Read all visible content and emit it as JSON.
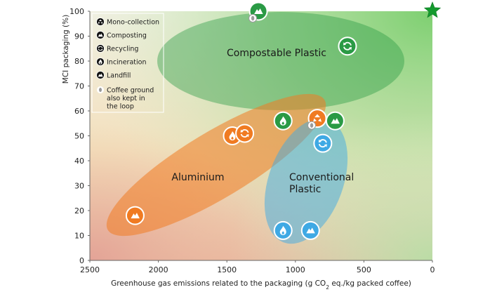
{
  "colors": {
    "compostable": "#2a9a45",
    "aluminium": "#f07b22",
    "conventional": "#3fa9e4",
    "coffee_ground": "#9a9a9a",
    "legend_icon": "#111111",
    "target_star": "#149a2e"
  },
  "chart_data": {
    "type": "scatter",
    "title": "",
    "xlabel": "Greenhouse gas emissions related to the packaging (g CO2 eq./kg packed coffee)",
    "xlabel_parts": {
      "before": "Greenhouse gas emissions related to the packaging (g CO",
      "sub": "2",
      "after": " eq./kg packed coffee)"
    },
    "ylabel": "MCI packaging (%)",
    "xlim": [
      2500,
      0
    ],
    "ylim": [
      0,
      100
    ],
    "xticks": [
      2500,
      2000,
      1500,
      1000,
      500,
      0
    ],
    "yticks": [
      0,
      10,
      20,
      30,
      40,
      50,
      60,
      70,
      80,
      90,
      100
    ],
    "grid": false,
    "legend_position": "top-left",
    "legend": [
      {
        "icon": "mono-collection",
        "label": "Mono-collection"
      },
      {
        "icon": "composting",
        "label": "Composting"
      },
      {
        "icon": "recycling",
        "label": "Recycling"
      },
      {
        "icon": "incineration",
        "label": "Incineration"
      },
      {
        "icon": "landfill",
        "label": "Landfill"
      },
      {
        "icon": "coffee-ground",
        "label": "Coffee ground also kept in the loop",
        "lines": [
          "Coffee ground",
          "also kept in",
          "the loop"
        ]
      }
    ],
    "clusters": [
      {
        "name": "Compostable Plastic",
        "lines": [
          "Compostable Plastic"
        ],
        "color": "compostable"
      },
      {
        "name": "Aluminium",
        "lines": [
          "Aluminium"
        ],
        "color": "aluminium"
      },
      {
        "name": "Conventional Plastic",
        "lines": [
          "Conventional",
          "Plastic"
        ],
        "color": "conventional"
      }
    ],
    "series": [
      {
        "material": "Compostable Plastic",
        "points": [
          {
            "x": 1270,
            "y": 100,
            "end_of_life": "composting",
            "coffee_ground": true
          },
          {
            "x": 620,
            "y": 86,
            "end_of_life": "recycling"
          },
          {
            "x": 1090,
            "y": 56,
            "end_of_life": "incineration"
          },
          {
            "x": 710,
            "y": 56,
            "end_of_life": "landfill"
          }
        ]
      },
      {
        "material": "Aluminium",
        "points": [
          {
            "x": 2170,
            "y": 18,
            "end_of_life": "landfill"
          },
          {
            "x": 1460,
            "y": 50,
            "end_of_life": "incineration"
          },
          {
            "x": 1370,
            "y": 51,
            "end_of_life": "recycling"
          },
          {
            "x": 840,
            "y": 57,
            "end_of_life": "mono-collection",
            "coffee_ground": true
          }
        ]
      },
      {
        "material": "Conventional Plastic",
        "points": [
          {
            "x": 800,
            "y": 47,
            "end_of_life": "recycling"
          },
          {
            "x": 1090,
            "y": 12,
            "end_of_life": "incineration"
          },
          {
            "x": 890,
            "y": 12,
            "end_of_life": "landfill"
          }
        ]
      }
    ],
    "target": {
      "x": 0,
      "y": 100,
      "marker": "star"
    }
  }
}
